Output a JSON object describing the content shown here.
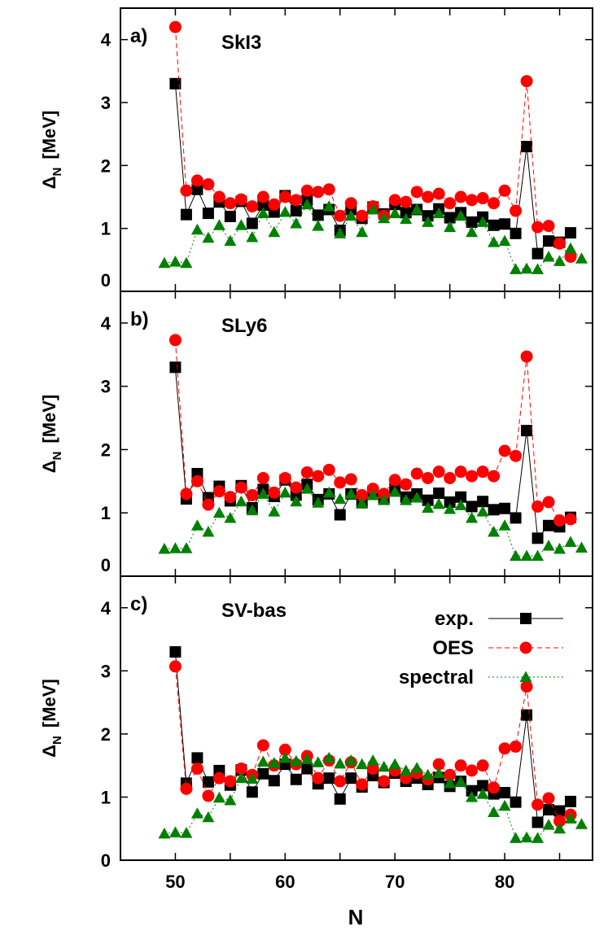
{
  "figure": {
    "xlabel": "N"
  },
  "legend": [
    {
      "key": "exp",
      "label": "exp."
    },
    {
      "key": "oes",
      "label": "OES"
    },
    {
      "key": "spectral",
      "label": "spectral"
    }
  ],
  "styles": {
    "exp": {
      "color": "#000000",
      "marker": "square",
      "line": "solid"
    },
    "oes": {
      "color": "#ff0000",
      "marker": "circle",
      "line": "dashed"
    },
    "spectral": {
      "color": "#008000",
      "marker": "triangle",
      "line": "dotted"
    }
  },
  "chart_data": [
    {
      "type": "line",
      "tag": "a)",
      "title": "SkI3",
      "xlabel": "N",
      "ylabel": "Δ",
      "ylabel_sub": "N",
      "ylabel_unit": "[MeV]",
      "xlim": [
        45,
        88
      ],
      "ylim": [
        0,
        4.5
      ],
      "xticks": [
        50,
        60,
        70,
        80
      ],
      "yticks": [
        0,
        1,
        2,
        3,
        4
      ],
      "series": [
        {
          "key": "exp",
          "x": [
            50,
            51,
            52,
            53,
            54,
            55,
            56,
            57,
            58,
            59,
            60,
            61,
            62,
            63,
            64,
            65,
            66,
            67,
            68,
            69,
            70,
            71,
            72,
            73,
            74,
            75,
            76,
            77,
            78,
            79,
            80,
            81,
            82,
            83,
            84,
            85,
            86
          ],
          "y": [
            3.3,
            1.22,
            1.62,
            1.24,
            1.42,
            1.19,
            1.43,
            1.08,
            1.37,
            1.26,
            1.52,
            1.28,
            1.45,
            1.21,
            1.3,
            0.97,
            1.3,
            1.16,
            1.34,
            1.23,
            1.38,
            1.25,
            1.3,
            1.2,
            1.31,
            1.17,
            1.25,
            1.1,
            1.18,
            1.05,
            1.07,
            0.92,
            2.3,
            0.6,
            0.8,
            0.78,
            0.93
          ]
        },
        {
          "key": "oes",
          "x": [
            50,
            51,
            52,
            53,
            54,
            55,
            56,
            57,
            58,
            59,
            60,
            61,
            62,
            63,
            64,
            65,
            66,
            67,
            68,
            69,
            70,
            71,
            72,
            73,
            74,
            75,
            76,
            77,
            78,
            79,
            80,
            81,
            82,
            83,
            84,
            85,
            86
          ],
          "y": [
            4.2,
            1.6,
            1.76,
            1.7,
            1.5,
            1.4,
            1.46,
            1.35,
            1.5,
            1.38,
            1.5,
            1.45,
            1.6,
            1.58,
            1.62,
            1.2,
            1.4,
            1.2,
            1.35,
            1.2,
            1.45,
            1.42,
            1.58,
            1.5,
            1.55,
            1.4,
            1.5,
            1.45,
            1.48,
            1.4,
            1.6,
            1.28,
            3.34,
            1.02,
            1.04,
            0.76,
            0.55
          ]
        },
        {
          "key": "spectral",
          "x": [
            49,
            50,
            51,
            52,
            53,
            54,
            55,
            56,
            57,
            58,
            59,
            60,
            61,
            62,
            63,
            64,
            65,
            66,
            67,
            68,
            69,
            70,
            71,
            72,
            73,
            74,
            75,
            76,
            77,
            78,
            79,
            80,
            81,
            82,
            83,
            84,
            85,
            86,
            87
          ],
          "y": [
            0.45,
            0.47,
            0.45,
            0.98,
            0.85,
            1.05,
            0.8,
            1.05,
            0.86,
            1.24,
            0.94,
            1.26,
            1.08,
            1.38,
            1.04,
            1.35,
            0.92,
            1.2,
            0.94,
            1.3,
            1.16,
            1.24,
            1.15,
            1.3,
            1.1,
            1.24,
            1.02,
            1.2,
            0.94,
            1.1,
            0.78,
            0.8,
            0.35,
            0.36,
            0.35,
            0.55,
            0.48,
            0.68,
            0.52
          ]
        }
      ]
    },
    {
      "type": "line",
      "tag": "b)",
      "title": "SLy6",
      "xlabel": "N",
      "ylabel": "Δ",
      "ylabel_sub": "N",
      "ylabel_unit": "[MeV]",
      "xlim": [
        45,
        88
      ],
      "ylim": [
        0,
        4.5
      ],
      "xticks": [
        50,
        60,
        70,
        80
      ],
      "yticks": [
        0,
        1,
        2,
        3,
        4
      ],
      "series": [
        {
          "key": "exp",
          "x": [
            50,
            51,
            52,
            53,
            54,
            55,
            56,
            57,
            58,
            59,
            60,
            61,
            62,
            63,
            64,
            65,
            66,
            67,
            68,
            69,
            70,
            71,
            72,
            73,
            74,
            75,
            76,
            77,
            78,
            79,
            80,
            81,
            82,
            83,
            84,
            85,
            86
          ],
          "y": [
            3.3,
            1.22,
            1.62,
            1.24,
            1.42,
            1.19,
            1.43,
            1.08,
            1.37,
            1.26,
            1.52,
            1.28,
            1.45,
            1.21,
            1.3,
            0.97,
            1.3,
            1.16,
            1.34,
            1.23,
            1.38,
            1.25,
            1.3,
            1.2,
            1.31,
            1.17,
            1.25,
            1.1,
            1.18,
            1.05,
            1.07,
            0.92,
            2.3,
            0.6,
            0.8,
            0.78,
            0.93
          ]
        },
        {
          "key": "oes",
          "x": [
            50,
            51,
            52,
            53,
            54,
            55,
            56,
            57,
            58,
            59,
            60,
            61,
            62,
            63,
            64,
            65,
            66,
            67,
            68,
            69,
            70,
            71,
            72,
            73,
            74,
            75,
            76,
            77,
            78,
            79,
            80,
            81,
            82,
            83,
            84,
            85,
            86
          ],
          "y": [
            3.73,
            1.3,
            1.5,
            1.13,
            1.34,
            1.25,
            1.4,
            1.28,
            1.55,
            1.32,
            1.55,
            1.4,
            1.64,
            1.58,
            1.68,
            1.48,
            1.53,
            1.28,
            1.38,
            1.3,
            1.52,
            1.45,
            1.62,
            1.55,
            1.65,
            1.55,
            1.65,
            1.58,
            1.65,
            1.58,
            1.98,
            1.9,
            3.47,
            1.1,
            1.17,
            0.88,
            0.9
          ]
        },
        {
          "key": "spectral",
          "x": [
            49,
            50,
            51,
            52,
            53,
            54,
            55,
            56,
            57,
            58,
            59,
            60,
            61,
            62,
            63,
            64,
            65,
            66,
            67,
            68,
            69,
            70,
            71,
            72,
            73,
            74,
            75,
            76,
            77,
            78,
            79,
            80,
            81,
            82,
            83,
            84,
            85,
            86,
            87
          ],
          "y": [
            0.43,
            0.44,
            0.44,
            0.8,
            0.7,
            1.0,
            0.92,
            1.18,
            1.04,
            1.3,
            1.02,
            1.32,
            1.18,
            1.38,
            1.16,
            1.32,
            1.22,
            1.3,
            1.15,
            1.28,
            1.2,
            1.33,
            1.2,
            1.24,
            1.08,
            1.14,
            1.06,
            1.12,
            0.92,
            1.02,
            0.7,
            0.8,
            0.32,
            0.32,
            0.32,
            0.48,
            0.43,
            0.54,
            0.45
          ]
        }
      ]
    },
    {
      "type": "line",
      "tag": "c)",
      "title": "SV-bas",
      "xlabel": "N",
      "ylabel": "Δ",
      "ylabel_sub": "N",
      "ylabel_unit": "[MeV]",
      "xlim": [
        45,
        88
      ],
      "ylim": [
        0,
        4.5
      ],
      "xticks": [
        50,
        60,
        70,
        80
      ],
      "yticks": [
        0,
        1,
        2,
        3,
        4
      ],
      "series": [
        {
          "key": "exp",
          "x": [
            50,
            51,
            52,
            53,
            54,
            55,
            56,
            57,
            58,
            59,
            60,
            61,
            62,
            63,
            64,
            65,
            66,
            67,
            68,
            69,
            70,
            71,
            72,
            73,
            74,
            75,
            76,
            77,
            78,
            79,
            80,
            81,
            82,
            83,
            84,
            85,
            86
          ],
          "y": [
            3.3,
            1.22,
            1.62,
            1.24,
            1.42,
            1.19,
            1.43,
            1.08,
            1.37,
            1.26,
            1.52,
            1.28,
            1.45,
            1.21,
            1.3,
            0.97,
            1.3,
            1.16,
            1.34,
            1.23,
            1.38,
            1.25,
            1.3,
            1.2,
            1.31,
            1.17,
            1.25,
            1.1,
            1.18,
            1.05,
            1.07,
            0.92,
            2.3,
            0.6,
            0.8,
            0.78,
            0.93
          ]
        },
        {
          "key": "oes",
          "x": [
            50,
            51,
            52,
            53,
            54,
            55,
            56,
            57,
            58,
            59,
            60,
            61,
            62,
            63,
            64,
            65,
            66,
            67,
            68,
            69,
            70,
            71,
            72,
            73,
            74,
            75,
            76,
            77,
            78,
            79,
            80,
            81,
            82,
            83,
            84,
            85,
            86
          ],
          "y": [
            3.07,
            1.13,
            1.45,
            1.02,
            1.3,
            1.25,
            1.45,
            1.35,
            1.82,
            1.5,
            1.75,
            1.52,
            1.65,
            1.3,
            1.58,
            1.25,
            1.55,
            1.2,
            1.45,
            1.25,
            1.42,
            1.3,
            1.38,
            1.28,
            1.52,
            1.35,
            1.5,
            1.42,
            1.5,
            1.15,
            1.77,
            1.8,
            2.75,
            0.88,
            0.98,
            0.62,
            0.72
          ]
        },
        {
          "key": "spectral",
          "x": [
            49,
            50,
            51,
            52,
            53,
            54,
            55,
            56,
            57,
            58,
            59,
            60,
            61,
            62,
            63,
            64,
            65,
            66,
            67,
            68,
            69,
            70,
            71,
            72,
            73,
            74,
            75,
            76,
            77,
            78,
            79,
            80,
            81,
            82,
            83,
            84,
            85,
            86,
            87
          ],
          "y": [
            0.42,
            0.44,
            0.43,
            0.74,
            0.68,
            0.99,
            0.95,
            1.3,
            1.29,
            1.56,
            1.54,
            1.62,
            1.57,
            1.6,
            1.55,
            1.62,
            1.53,
            1.58,
            1.52,
            1.58,
            1.48,
            1.52,
            1.42,
            1.46,
            1.35,
            1.38,
            1.22,
            1.24,
            1.0,
            1.05,
            0.76,
            0.86,
            0.35,
            0.36,
            0.35,
            0.56,
            0.5,
            0.66,
            0.57
          ]
        }
      ]
    }
  ]
}
